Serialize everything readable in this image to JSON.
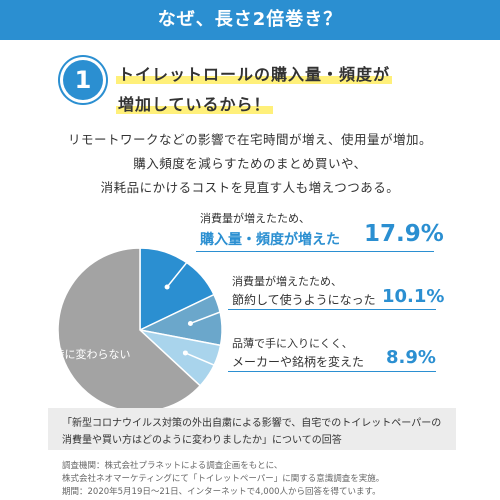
{
  "header": {
    "title": "なぜ、長さ2倍巻き？"
  },
  "reason": {
    "number": "1",
    "line1": "トイレットロールの購入量・頻度が",
    "line2": "増加しているから！"
  },
  "body": {
    "line1": "リモートワークなどの影響で在宅時間が増え、使用量が増加。",
    "line2": "購入頻度を減らすためのまとめ買いや、",
    "line3": "消耗品にかけるコストを見直す人も増えつつある。"
  },
  "chart_data": {
    "type": "pie",
    "labels": [
      "消費量が増えたため、購入量・頻度が増えた",
      "消費量が増えたため、節約して使うようになった",
      "品薄で手に入りにくく、メーカーや銘柄を変えた",
      "特に変わらない"
    ],
    "values": [
      17.9,
      10.1,
      8.9,
      63.1
    ],
    "colors": [
      "#2b8fd1",
      "#6ba7cb",
      "#a9d4ec",
      "#a3a3a3"
    ],
    "annotations": [
      {
        "line1": "消費量が増えたため、",
        "line2": "購入量・頻度が増えた",
        "pct": "17.9%"
      },
      {
        "line1": "消費量が増えたため、",
        "line2": "節約して使うようになった",
        "pct": "10.1%"
      },
      {
        "line1": "品薄で手に入りにくく、",
        "line2": "メーカーや銘柄を変えた",
        "pct": "8.9%"
      }
    ],
    "inner_label": "特に変わらない"
  },
  "source": {
    "line1": "「新型コロナウイルス対策の外出自粛による影響で、自宅でのトイレットペーパーの",
    "line2": "消費量や買い方はどのように変わりましたか」についての回答"
  },
  "notes": {
    "line1": "調査機関：株式会社プラネットによる調査企画をもとに、",
    "line2": "株式会社ネオマーケティングにて「トイレットペーパー」に関する意識調査を実施。",
    "line3": "期間：2020年5月19日〜21日、インターネットで4,000人から回答を得ています。"
  }
}
